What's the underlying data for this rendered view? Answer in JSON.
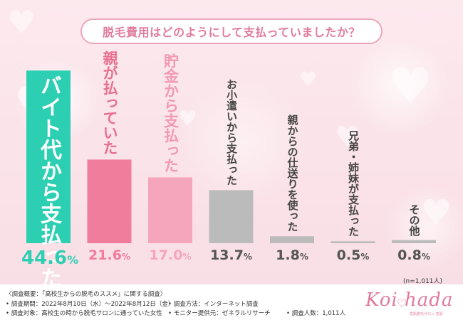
{
  "title": "脱毛費用はどのようにして支払っていましたか？",
  "sample_note": "(n=1,011人)",
  "chart_data": {
    "type": "bar",
    "title": "脱毛費用はどのようにして支払っていましたか？",
    "categories": [
      "バイト代から支払った",
      "親が払っていた",
      "貯金から支払った",
      "お小遣いから支払った",
      "親からの仕送りを使った",
      "兄弟・姉妹が支払った",
      "その他"
    ],
    "values": [
      44.6,
      21.6,
      17.0,
      13.7,
      1.8,
      0.5,
      0.8
    ],
    "value_labels": [
      "44.6%",
      "21.6%",
      "17.0%",
      "13.7%",
      "1.8%",
      "0.5%",
      "0.8%"
    ],
    "colors": [
      "#2dcfb3",
      "#f07d9c",
      "#f5a6bd",
      "#bbbbbb",
      "#bbbbbb",
      "#bbbbbb",
      "#bbbbbb"
    ],
    "ylim": [
      0,
      45
    ],
    "grid": false,
    "legend": "none"
  },
  "footer": {
    "overview": "〈調査概要：「高校生からの脱毛のススメ」に関する調査〉",
    "period": "• 調査期間：2022年8月10日（水）〜2022年8月12日（金）",
    "target": "• 調査対象：高校生の時から脱毛サロンに通っていた女性",
    "method": "• 調査方法：インターネット調査",
    "provider": "• モニター提供元：ゼネラルリサーチ",
    "count": "• 調査人数：1,011人"
  },
  "logo": {
    "text": "Koi hada",
    "sub": "恋肌脱毛サロン 恋肌",
    "color": "#e07b9c"
  }
}
